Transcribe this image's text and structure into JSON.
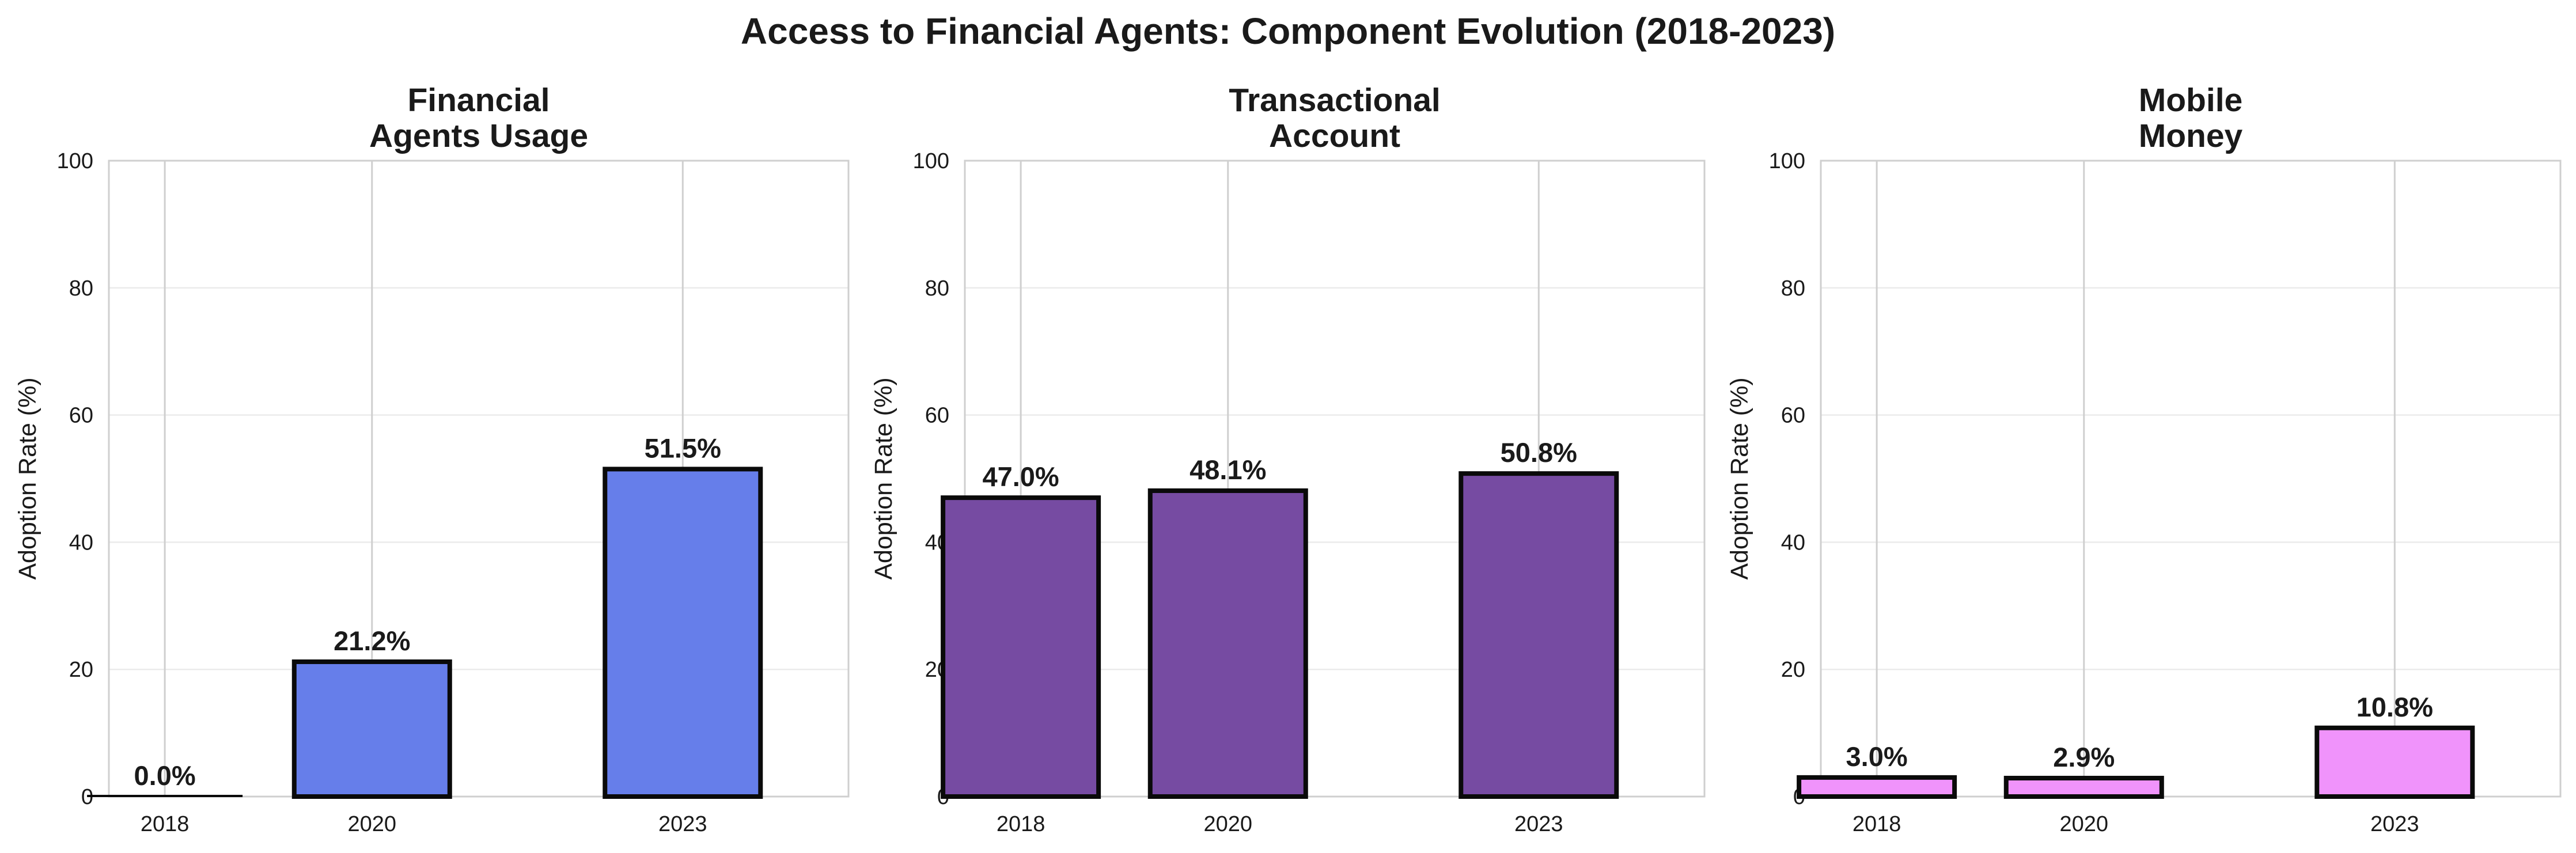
{
  "figure": {
    "title": "Access to Financial Agents: Component Evolution (2018-2023)"
  },
  "chart_data": [
    {
      "type": "bar",
      "title": "Financial\nAgents Usage",
      "x": [
        2018,
        2020,
        2023
      ],
      "categories": [
        "2018",
        "2020",
        "2023"
      ],
      "values": [
        0.0,
        21.2,
        51.5
      ],
      "value_labels": [
        "0.0%",
        "21.2%",
        "51.5%"
      ],
      "ylabel": "Adoption Rate (%)",
      "ylim": [
        0,
        100
      ],
      "yticks": [
        "0",
        "20",
        "40",
        "60",
        "80",
        "100"
      ],
      "grid": true,
      "color": "#667eea"
    },
    {
      "type": "bar",
      "title": "Transactional\nAccount",
      "x": [
        2018,
        2020,
        2023
      ],
      "categories": [
        "2018",
        "2020",
        "2023"
      ],
      "values": [
        47.0,
        48.1,
        50.8
      ],
      "value_labels": [
        "47.0%",
        "48.1%",
        "50.8%"
      ],
      "ylabel": "Adoption Rate (%)",
      "ylim": [
        0,
        100
      ],
      "yticks": [
        "0",
        "20",
        "40",
        "60",
        "80",
        "100"
      ],
      "grid": true,
      "color": "#764ba2"
    },
    {
      "type": "bar",
      "title": "Mobile\nMoney",
      "x": [
        2018,
        2020,
        2023
      ],
      "categories": [
        "2018",
        "2020",
        "2023"
      ],
      "values": [
        3.0,
        2.9,
        10.8
      ],
      "value_labels": [
        "3.0%",
        "2.9%",
        "10.8%"
      ],
      "ylabel": "Adoption Rate (%)",
      "ylim": [
        0,
        100
      ],
      "yticks": [
        "0",
        "20",
        "40",
        "60",
        "80",
        "100"
      ],
      "grid": true,
      "color": "#f093fb"
    }
  ]
}
